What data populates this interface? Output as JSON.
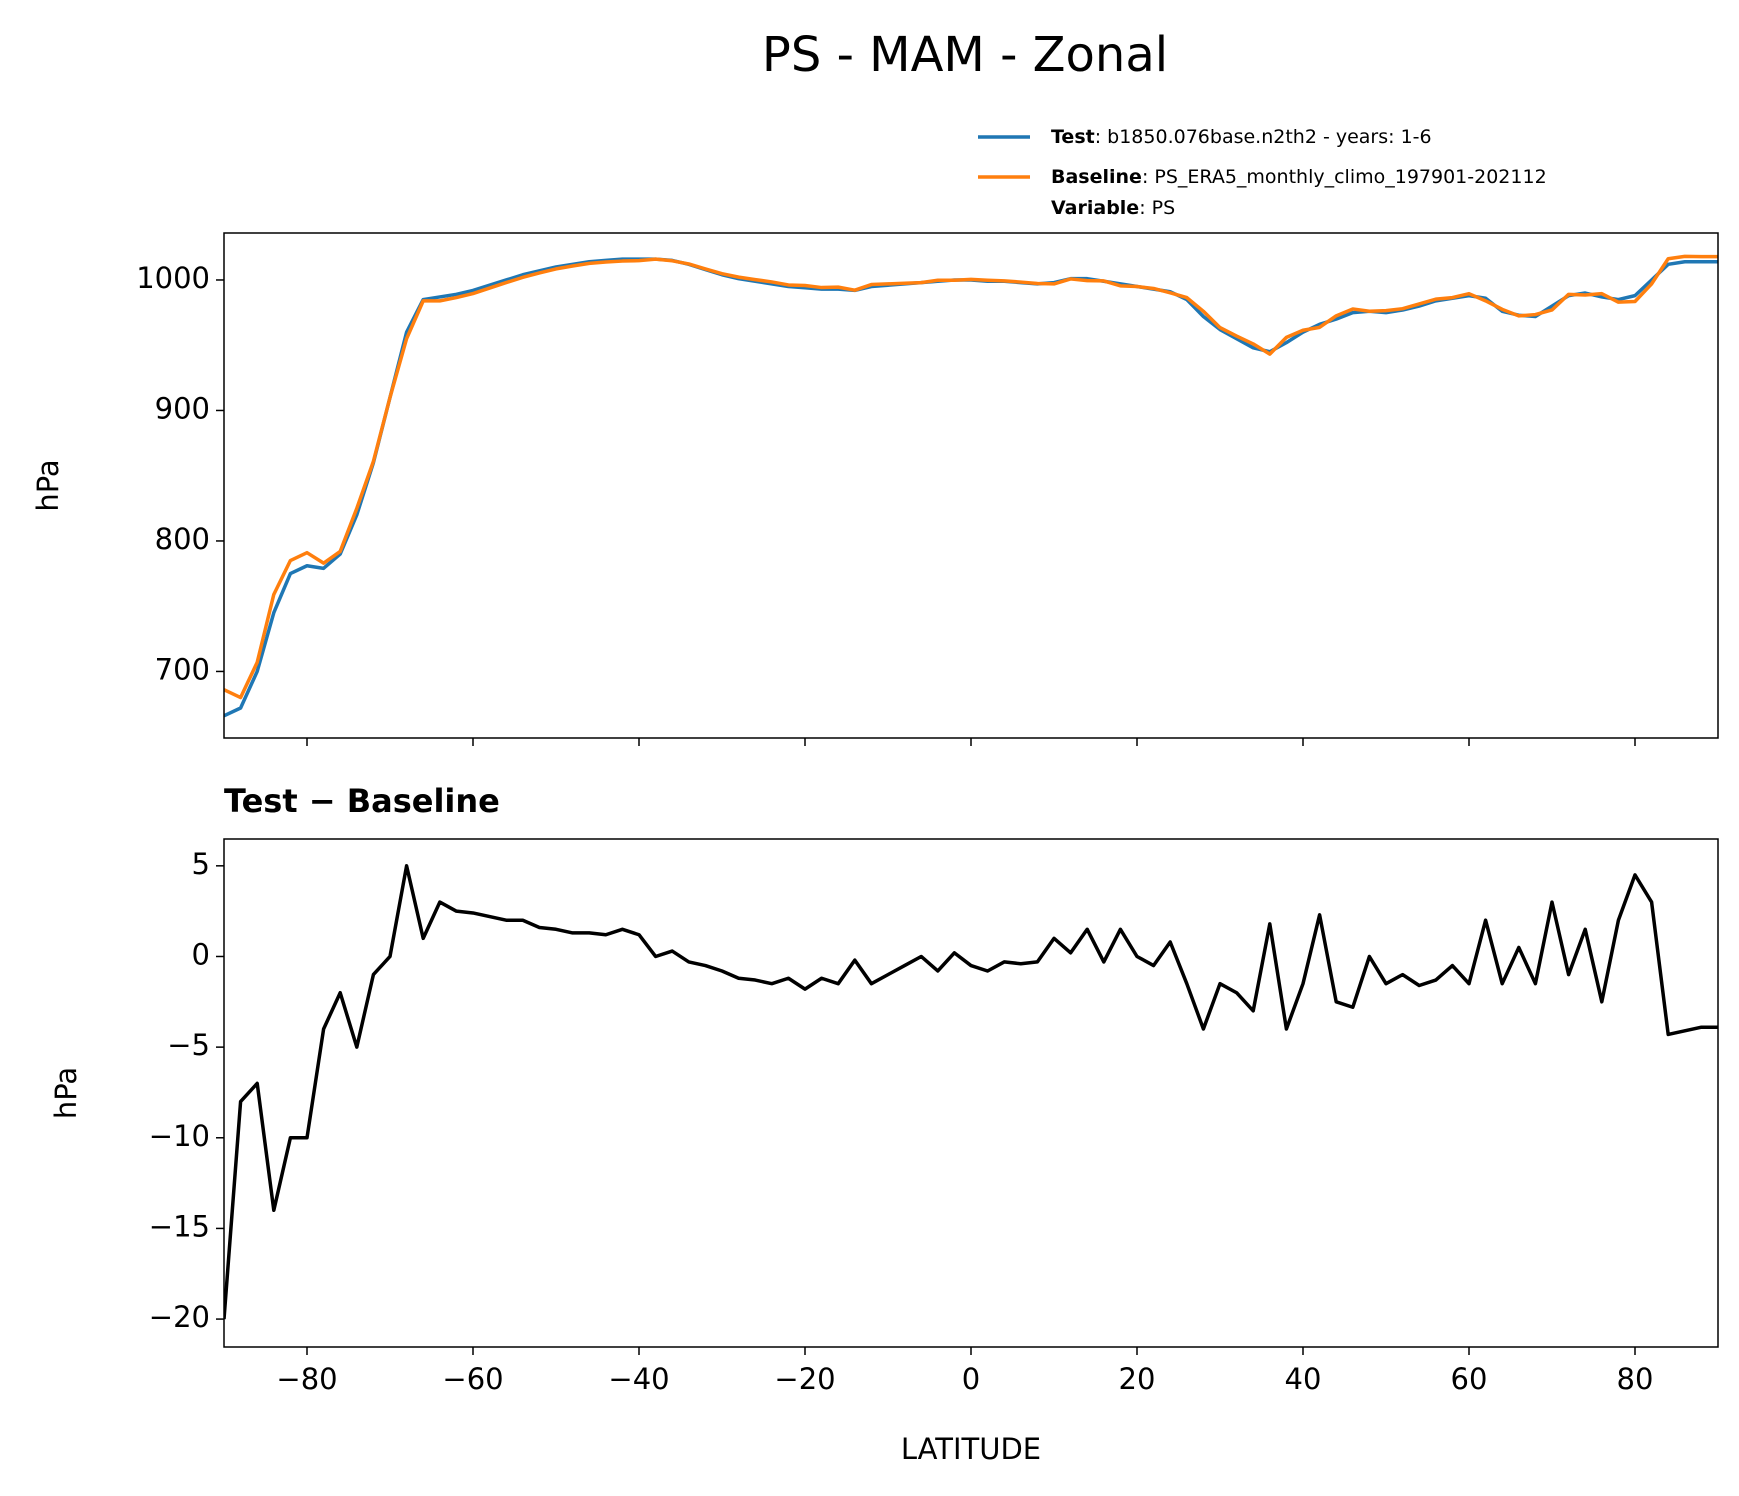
{
  "chart_data": [
    {
      "type": "line",
      "title": "PS - MAM - Zonal",
      "ylabel": "hPa",
      "x": [
        -90,
        -88,
        -86,
        -84,
        -82,
        -80,
        -78,
        -76,
        -74,
        -72,
        -70,
        -68,
        -66,
        -64,
        -62,
        -60,
        -58,
        -56,
        -54,
        -52,
        -50,
        -48,
        -46,
        -44,
        -42,
        -40,
        -38,
        -36,
        -34,
        -32,
        -30,
        -28,
        -26,
        -24,
        -22,
        -20,
        -18,
        -16,
        -14,
        -12,
        -10,
        -8,
        -6,
        -4,
        -2,
        0,
        2,
        4,
        6,
        8,
        10,
        12,
        14,
        16,
        18,
        20,
        22,
        24,
        26,
        28,
        30,
        32,
        34,
        36,
        38,
        40,
        42,
        44,
        46,
        48,
        50,
        52,
        54,
        56,
        58,
        60,
        62,
        64,
        66,
        68,
        70,
        72,
        74,
        76,
        78,
        80,
        82,
        84,
        86,
        88,
        90
      ],
      "series": [
        {
          "name": "Test",
          "description": ": b1850.076base.n2th2 - years: 1-6",
          "color": "#1f77b4",
          "values": [
            666,
            672,
            700,
            745,
            775,
            781,
            779,
            790,
            820,
            860,
            910,
            960,
            985,
            987,
            989,
            992,
            996,
            1000,
            1004,
            1007,
            1010,
            1012,
            1014,
            1015,
            1016,
            1016,
            1016,
            1015,
            1012,
            1008,
            1004,
            1001,
            999,
            997,
            995,
            994,
            993,
            993,
            992,
            995,
            996,
            997,
            998,
            999,
            1000,
            1000,
            999,
            999,
            998,
            997,
            998,
            1001,
            1001,
            999,
            997,
            995,
            993,
            991,
            985,
            972,
            962,
            955,
            948,
            945,
            952,
            960,
            966,
            970,
            975,
            976,
            975,
            977,
            980,
            984,
            986,
            988,
            986,
            976,
            973,
            972,
            980,
            988,
            990,
            987,
            985,
            988,
            1000,
            1012,
            1014,
            1014,
            1014
          ]
        },
        {
          "name": "Baseline",
          "description": ": PS_ERA5_monthly_climo_197901-202112",
          "color": "#ff7f0e",
          "values": [
            686,
            680,
            707,
            759,
            785,
            791,
            783,
            792,
            825,
            861,
            910,
            955,
            984,
            984,
            986.5,
            989.6,
            993.8,
            998,
            1002,
            1005.4,
            1008.5,
            1010.7,
            1012.7,
            1013.8,
            1014.5,
            1014.8,
            1016,
            1014.7,
            1012.3,
            1008.5,
            1004.8,
            1002.2,
            1000.3,
            998.5,
            996.2,
            995.8,
            994.2,
            994.5,
            992.2,
            996.5,
            997,
            997.5,
            998,
            999.8,
            999.8,
            1000.5,
            999.8,
            999.3,
            998.4,
            997.3,
            997,
            1000.8,
            999.5,
            999.3,
            995.5,
            995,
            993.5,
            990.2,
            986.5,
            976,
            963.5,
            957,
            951,
            943.2,
            956,
            961.5,
            963.7,
            972.5,
            977.8,
            976,
            976.5,
            978,
            981.6,
            985.3,
            986.5,
            989.5,
            984,
            977.5,
            972.5,
            973.5,
            977,
            989,
            988.5,
            989.5,
            983,
            983.5,
            997,
            1016.3,
            1018.1,
            1017.9,
            1017.9
          ]
        }
      ],
      "legend_extra": {
        "name": "Variable",
        "description": ": PS"
      },
      "xlim": [
        -90,
        90
      ],
      "xticks": [
        -80,
        -60,
        -40,
        -20,
        0,
        20,
        40,
        60,
        80
      ],
      "show_xtick_labels": false,
      "ylim": [
        649,
        1036
      ],
      "yticks": [
        700,
        800,
        900,
        1000
      ]
    },
    {
      "type": "line",
      "title": "Test − Baseline",
      "xlabel": "LATITUDE",
      "ylabel": "hPa",
      "x": [
        -90,
        -88,
        -86,
        -84,
        -82,
        -80,
        -78,
        -76,
        -74,
        -72,
        -70,
        -68,
        -66,
        -64,
        -62,
        -60,
        -58,
        -56,
        -54,
        -52,
        -50,
        -48,
        -46,
        -44,
        -42,
        -40,
        -38,
        -36,
        -34,
        -32,
        -30,
        -28,
        -26,
        -24,
        -22,
        -20,
        -18,
        -16,
        -14,
        -12,
        -10,
        -8,
        -6,
        -4,
        -2,
        0,
        2,
        4,
        6,
        8,
        10,
        12,
        14,
        16,
        18,
        20,
        22,
        24,
        26,
        28,
        30,
        32,
        34,
        36,
        38,
        40,
        42,
        44,
        46,
        48,
        50,
        52,
        54,
        56,
        58,
        60,
        62,
        64,
        66,
        68,
        70,
        72,
        74,
        76,
        78,
        80,
        82,
        84,
        86,
        88,
        90
      ],
      "series": [
        {
          "color": "#000000",
          "values": [
            -20,
            -8,
            -7,
            -14,
            -10,
            -10,
            -4,
            -2,
            -5,
            -1,
            0,
            5,
            1,
            3,
            2.5,
            2.4,
            2.2,
            2.0,
            2.0,
            1.6,
            1.5,
            1.3,
            1.3,
            1.2,
            1.5,
            1.2,
            0,
            0.3,
            -0.3,
            -0.5,
            -0.8,
            -1.2,
            -1.3,
            -1.5,
            -1.2,
            -1.8,
            -1.2,
            -1.5,
            -0.2,
            -1.5,
            -1,
            -0.5,
            0,
            -0.8,
            0.2,
            -0.5,
            -0.8,
            -0.3,
            -0.4,
            -0.3,
            1,
            0.2,
            1.5,
            -0.3,
            1.5,
            0,
            -0.5,
            0.8,
            -1.5,
            -4,
            -1.5,
            -2,
            -3,
            1.8,
            -4,
            -1.5,
            2.3,
            -2.5,
            -2.8,
            0,
            -1.5,
            -1,
            -1.6,
            -1.3,
            -0.5,
            -1.5,
            2,
            -1.5,
            0.5,
            -1.5,
            3,
            -1,
            1.5,
            -2.5,
            2,
            4.5,
            3,
            -4.3,
            -4.1,
            -3.9,
            -3.9
          ]
        }
      ],
      "xlim": [
        -90,
        90
      ],
      "xticks": [
        {
          "value": -80,
          "label": "−80"
        },
        {
          "value": -60,
          "label": "−60"
        },
        {
          "value": -40,
          "label": "−40"
        },
        {
          "value": -20,
          "label": "−20"
        },
        0,
        20,
        40,
        60,
        80
      ],
      "show_xtick_labels": true,
      "ylim": [
        -21.54,
        6.48
      ],
      "yticks": [
        {
          "value": -20,
          "label": "−20"
        },
        {
          "value": -15,
          "label": "−15"
        },
        {
          "value": -10,
          "label": "−10"
        },
        {
          "value": -5,
          "label": "−5"
        },
        0,
        5
      ]
    }
  ]
}
